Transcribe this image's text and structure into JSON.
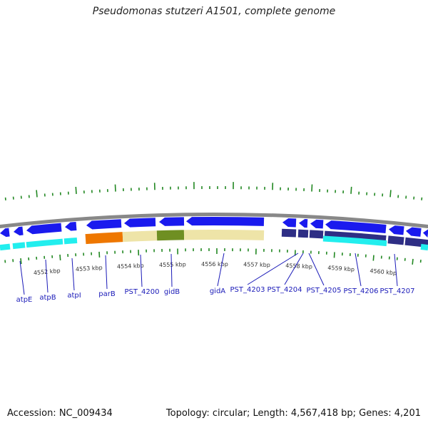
{
  "title": "Pseudomonas stutzeri A1501, complete genome",
  "accession": "Accession: NC_009434",
  "summary": "Topology: circular; Length: 4,567,418 bp; Genes: 4,201",
  "colors": {
    "backbone": "#888888",
    "gene_blue": "#1a1aee",
    "gene_navy": "#2e2e85",
    "cyan": "#22eeee",
    "orange": "#ee7700",
    "khaki": "#eee4a8",
    "olive": "#6f8f22",
    "tick_green": "#228822",
    "label_blue": "#1a1ab8"
  },
  "scale_labels": [
    "4552 kbp",
    "4553 kbp",
    "4554 kbp",
    "4555 kbp",
    "4556 kbp",
    "4557 kbp",
    "4558 kbp",
    "4559 kbp",
    "4560 kbp"
  ],
  "gene_labels": [
    "atpE",
    "atpB",
    "atpI",
    "parB",
    "PST_4200",
    "gidB",
    "gidA",
    "PST_4203",
    "PST_4204",
    "PST_4205",
    "PST_4206",
    "PST_4207"
  ]
}
